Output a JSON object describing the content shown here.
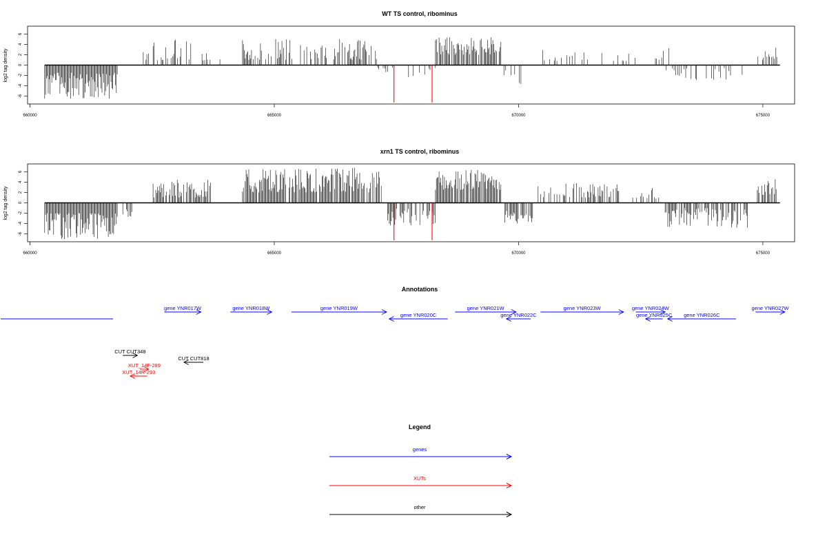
{
  "chart_data": [
    {
      "type": "bar",
      "title": "WT TS control, ribominus",
      "ylabel": "log2 tag density",
      "xlabel": "",
      "xlim": [
        659950,
        675650
      ],
      "ylim": [
        -7.5,
        7.5
      ],
      "xticks": [
        660000,
        665000,
        670000,
        675000
      ],
      "yticks": [
        -6,
        -4,
        -2,
        0,
        2,
        4,
        6
      ],
      "grid": false,
      "baseline": {
        "from": 660300,
        "to": 675350
      },
      "segments": [
        {
          "from": 660300,
          "to": 661800,
          "min": -6.5,
          "max": -1.5,
          "density": 1
        },
        {
          "from": 662300,
          "to": 663300,
          "min": 0.8,
          "max": 5.3,
          "density": 0.4
        },
        {
          "from": 663300,
          "to": 663900,
          "min": 0.8,
          "max": 3.0,
          "density": 0.3
        },
        {
          "from": 664350,
          "to": 665400,
          "min": 1.0,
          "max": 5.0,
          "density": 0.6
        },
        {
          "from": 665500,
          "to": 666300,
          "min": 1.0,
          "max": 4.0,
          "density": 0.5
        },
        {
          "from": 666300,
          "to": 667100,
          "min": 1.0,
          "max": 5.2,
          "density": 0.55
        },
        {
          "from": 667100,
          "to": 667400,
          "min": -1.5,
          "max": -0.5,
          "density": 0.3
        },
        {
          "from": 667400,
          "to": 668300,
          "min": -2.5,
          "max": -0.5,
          "density": 0.15
        },
        {
          "from": 668300,
          "to": 669650,
          "min": 2.0,
          "max": 5.5,
          "density": 0.9
        },
        {
          "from": 669700,
          "to": 670050,
          "min": -4.0,
          "max": -1.0,
          "density": 0.4
        },
        {
          "from": 670400,
          "to": 671200,
          "min": 0.8,
          "max": 3.0,
          "density": 0.2
        },
        {
          "from": 671300,
          "to": 672400,
          "min": 0.8,
          "max": 2.5,
          "density": 0.15
        },
        {
          "from": 672800,
          "to": 673100,
          "min": 1.0,
          "max": 3.5,
          "density": 0.4
        },
        {
          "from": 673000,
          "to": 674600,
          "min": -3.5,
          "max": -0.5,
          "density": 0.35
        },
        {
          "from": 674900,
          "to": 675300,
          "min": 1.0,
          "max": 3.5,
          "density": 0.5
        }
      ],
      "highlights": [
        {
          "x": 667450,
          "y": -7.2,
          "color": "#ff0000"
        },
        {
          "x": 668230,
          "y": -7.2,
          "color": "#ff0000"
        }
      ]
    },
    {
      "type": "bar",
      "title": "xrn1 TS control, ribominus",
      "ylabel": "log2 tag density",
      "xlabel": "",
      "xlim": [
        659950,
        675650
      ],
      "ylim": [
        -7.5,
        7.5
      ],
      "xticks": [
        660000,
        665000,
        670000,
        675000
      ],
      "yticks": [
        -6,
        -4,
        -2,
        0,
        2,
        4,
        6
      ],
      "grid": false,
      "baseline": {
        "from": 660300,
        "to": 675350
      },
      "segments": [
        {
          "from": 660300,
          "to": 661800,
          "min": -7.0,
          "max": -2.0,
          "density": 1
        },
        {
          "from": 661900,
          "to": 662100,
          "min": -3.0,
          "max": -1.0,
          "density": 0.5
        },
        {
          "from": 662500,
          "to": 663700,
          "min": 1.0,
          "max": 4.5,
          "density": 0.8
        },
        {
          "from": 664350,
          "to": 665300,
          "min": 2.0,
          "max": 6.5,
          "density": 0.9
        },
        {
          "from": 665300,
          "to": 667200,
          "min": 2.0,
          "max": 6.8,
          "density": 0.9
        },
        {
          "from": 667300,
          "to": 668300,
          "min": -4.5,
          "max": -1.0,
          "density": 0.7
        },
        {
          "from": 668300,
          "to": 669650,
          "min": 2.5,
          "max": 6.5,
          "density": 0.95
        },
        {
          "from": 669700,
          "to": 670300,
          "min": -4.0,
          "max": -1.5,
          "density": 0.7
        },
        {
          "from": 670400,
          "to": 672100,
          "min": 1.0,
          "max": 4.0,
          "density": 0.5
        },
        {
          "from": 672300,
          "to": 672900,
          "min": 0.8,
          "max": 3.0,
          "density": 0.3
        },
        {
          "from": 673000,
          "to": 674700,
          "min": -4.8,
          "max": -1.0,
          "density": 0.8
        },
        {
          "from": 674850,
          "to": 675300,
          "min": 1.5,
          "max": 5.0,
          "density": 0.8
        }
      ],
      "highlights": [
        {
          "x": 667450,
          "y": -7.2,
          "color": "#ff0000"
        },
        {
          "x": 668230,
          "y": -7.2,
          "color": "#ff0000"
        }
      ]
    }
  ],
  "annotations": {
    "title": "Annotations",
    "genes_color": "#0000ff",
    "xuts_color": "#ff0000",
    "other_color": "#000000",
    "features": [
      {
        "label": "",
        "from": 659400,
        "to": 661700,
        "strand": "none",
        "row": 1,
        "kind": "gene"
      },
      {
        "label": "gene YNR017W",
        "from": 662750,
        "to": 663500,
        "strand": "+",
        "row": 0,
        "kind": "gene"
      },
      {
        "label": "gene YNR018W",
        "from": 664100,
        "to": 664950,
        "strand": "+",
        "row": 0,
        "kind": "gene"
      },
      {
        "label": "gene YNR019W",
        "from": 665350,
        "to": 667300,
        "strand": "+",
        "row": 0,
        "kind": "gene"
      },
      {
        "label": "gene YNR020C",
        "from": 667350,
        "to": 668550,
        "strand": "-",
        "row": 1,
        "kind": "gene"
      },
      {
        "label": "gene YNR021W",
        "from": 668700,
        "to": 669950,
        "strand": "+",
        "row": 0,
        "kind": "gene"
      },
      {
        "label": "gene YNR022C",
        "from": 669750,
        "to": 670250,
        "strand": "-",
        "row": 1,
        "kind": "gene"
      },
      {
        "label": "gene YNR023W",
        "from": 670450,
        "to": 672150,
        "strand": "+",
        "row": 0,
        "kind": "gene"
      },
      {
        "label": "gene YNR024W",
        "from": 672400,
        "to": 673000,
        "strand": "+",
        "row": 0,
        "kind": "gene"
      },
      {
        "label": "gene YNR025C",
        "from": 672600,
        "to": 672950,
        "strand": "-",
        "row": 1,
        "kind": "gene"
      },
      {
        "label": "gene YNR026C",
        "from": 673050,
        "to": 674450,
        "strand": "-",
        "row": 1,
        "kind": "gene"
      },
      {
        "label": "gene YNR027W",
        "from": 674850,
        "to": 675450,
        "strand": "+",
        "row": 0,
        "kind": "gene"
      },
      {
        "label": "CUT CUT348",
        "from": 661900,
        "to": 662200,
        "strand": "+",
        "row": 2,
        "kind": "other"
      },
      {
        "label": "CUT CUT818",
        "from": 663150,
        "to": 663550,
        "strand": "-",
        "row": 3,
        "kind": "other"
      },
      {
        "label": "XUT_14F-289",
        "from": 662250,
        "to": 662430,
        "strand": "+",
        "row": 4,
        "kind": "xut"
      },
      {
        "label": "XUT_14R-293",
        "from": 662050,
        "to": 662400,
        "strand": "-",
        "row": 5,
        "kind": "xut"
      }
    ]
  },
  "legend": {
    "title": "Legend",
    "items": [
      {
        "label": "genes",
        "color": "#0000ff"
      },
      {
        "label": "XUTs",
        "color": "#ff0000"
      },
      {
        "label": "other",
        "color": "#000000"
      }
    ]
  }
}
